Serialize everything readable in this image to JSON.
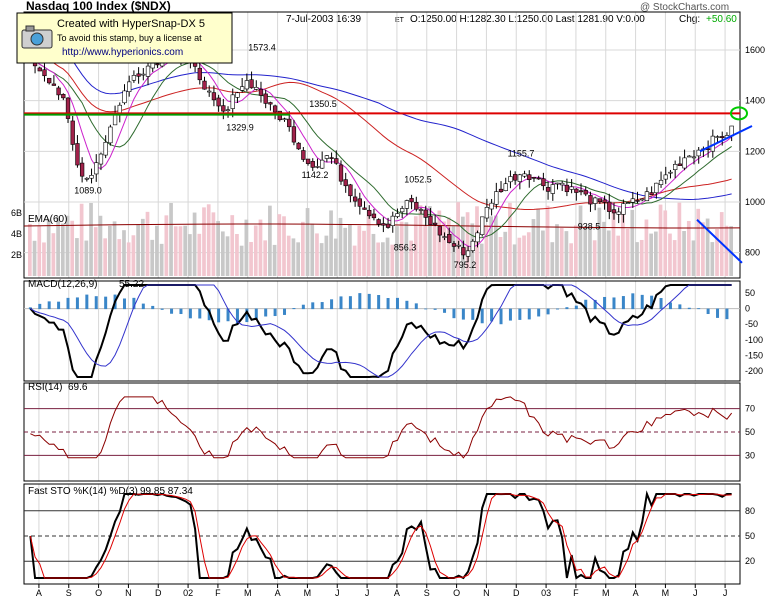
{
  "header": {
    "title": "Nasdaq 100 Index ($NDX)",
    "copyright": "@ StockCharts.com",
    "quote": "7-Jul-2003 16:39",
    "quote_tz": "ET",
    "ohlc": "O:1250.00 H:1282.30 L:1250.00 Last:1281.90 V:0.00",
    "chg_label": "Chg:",
    "chg_value": "+50.60"
  },
  "stamp": {
    "line1": "Created with HyperSnap-DX 5",
    "line2": "To avoid this stamp, buy a license at",
    "line3": "http://www.hyperionics.com"
  },
  "colors": {
    "grid": "#d8d8d8",
    "up": "#ffffff",
    "down": "#a0224a",
    "ema": "#8b0000",
    "ma_red": "#cc2222",
    "ma_green": "#2e6b2e",
    "ma_magenta": "#cc22cc",
    "ma_blue": "#2222cc",
    "hline_red": "#dd0000",
    "hline_green": "#009900",
    "trend_blue": "#0033ff",
    "macd_hist": "#3a86c8",
    "sto_k": "#000000",
    "sto_d": "#dd0000"
  },
  "chart_data": [
    {
      "type": "candlestick",
      "title": "Nasdaq 100 Index ($NDX)",
      "y_ticks": [
        800,
        1000,
        1200,
        1400,
        1600
      ],
      "ylim": [
        700,
        1750
      ],
      "volume_ticks": [
        "2B",
        "4B",
        "6B"
      ],
      "ema_label": "EMA(60)",
      "x_ticks": [
        "A",
        "S",
        "O",
        "N",
        "D",
        "02",
        "F",
        "M",
        "A",
        "M",
        "J",
        "J",
        "A",
        "S",
        "O",
        "N",
        "D",
        "03",
        "F",
        "M",
        "A",
        "M",
        "J",
        "J"
      ],
      "price_labels": [
        {
          "text": "1573.4",
          "value": 1573.4
        },
        {
          "text": "1329.9",
          "value": 1329.9
        },
        {
          "text": "1350.5",
          "value": 1350.5
        },
        {
          "text": "1142.2",
          "value": 1142.2
        },
        {
          "text": "1089.0",
          "value": 1089.0
        },
        {
          "text": "1052.5",
          "value": 1052.5
        },
        {
          "text": "856.3",
          "value": 856.3
        },
        {
          "text": "795.2",
          "value": 795.2
        },
        {
          "text": "1155.7",
          "value": 1155.7
        },
        {
          "text": "938.5",
          "value": 938.5
        }
      ],
      "resistance_red": 1350,
      "resistance_green": 1345,
      "close_profile": [
        1560,
        1520,
        1470,
        1380,
        1150,
        1090,
        1180,
        1300,
        1420,
        1500,
        1530,
        1560,
        1590,
        1570,
        1540,
        1480,
        1380,
        1340,
        1450,
        1480,
        1430,
        1360,
        1330,
        1250,
        1160,
        1150,
        1190,
        1100,
        1030,
        980,
        940,
        900,
        960,
        1000,
        960,
        910,
        860,
        820,
        800,
        900,
        1000,
        1060,
        1100,
        1120,
        1090,
        1060,
        1080,
        1050,
        1030,
        1000,
        980,
        960,
        990,
        1010,
        1040,
        1090,
        1140,
        1180,
        1200,
        1230,
        1260,
        1282
      ]
    },
    {
      "type": "line",
      "title": "MACD(12,26,9)",
      "value_label": "55.22",
      "y_ticks": [
        "50",
        "0",
        "-50",
        "-100",
        "-150",
        "-200"
      ]
    },
    {
      "type": "line",
      "title": "RSI(14)",
      "value_label": "69.6",
      "y_ticks": [
        "70",
        "50",
        "30"
      ]
    },
    {
      "type": "line",
      "title": "Fast STO %K(14) %D(3)",
      "value_label": "99.85  87.34",
      "y_ticks": [
        "80",
        "50",
        "20"
      ]
    }
  ]
}
